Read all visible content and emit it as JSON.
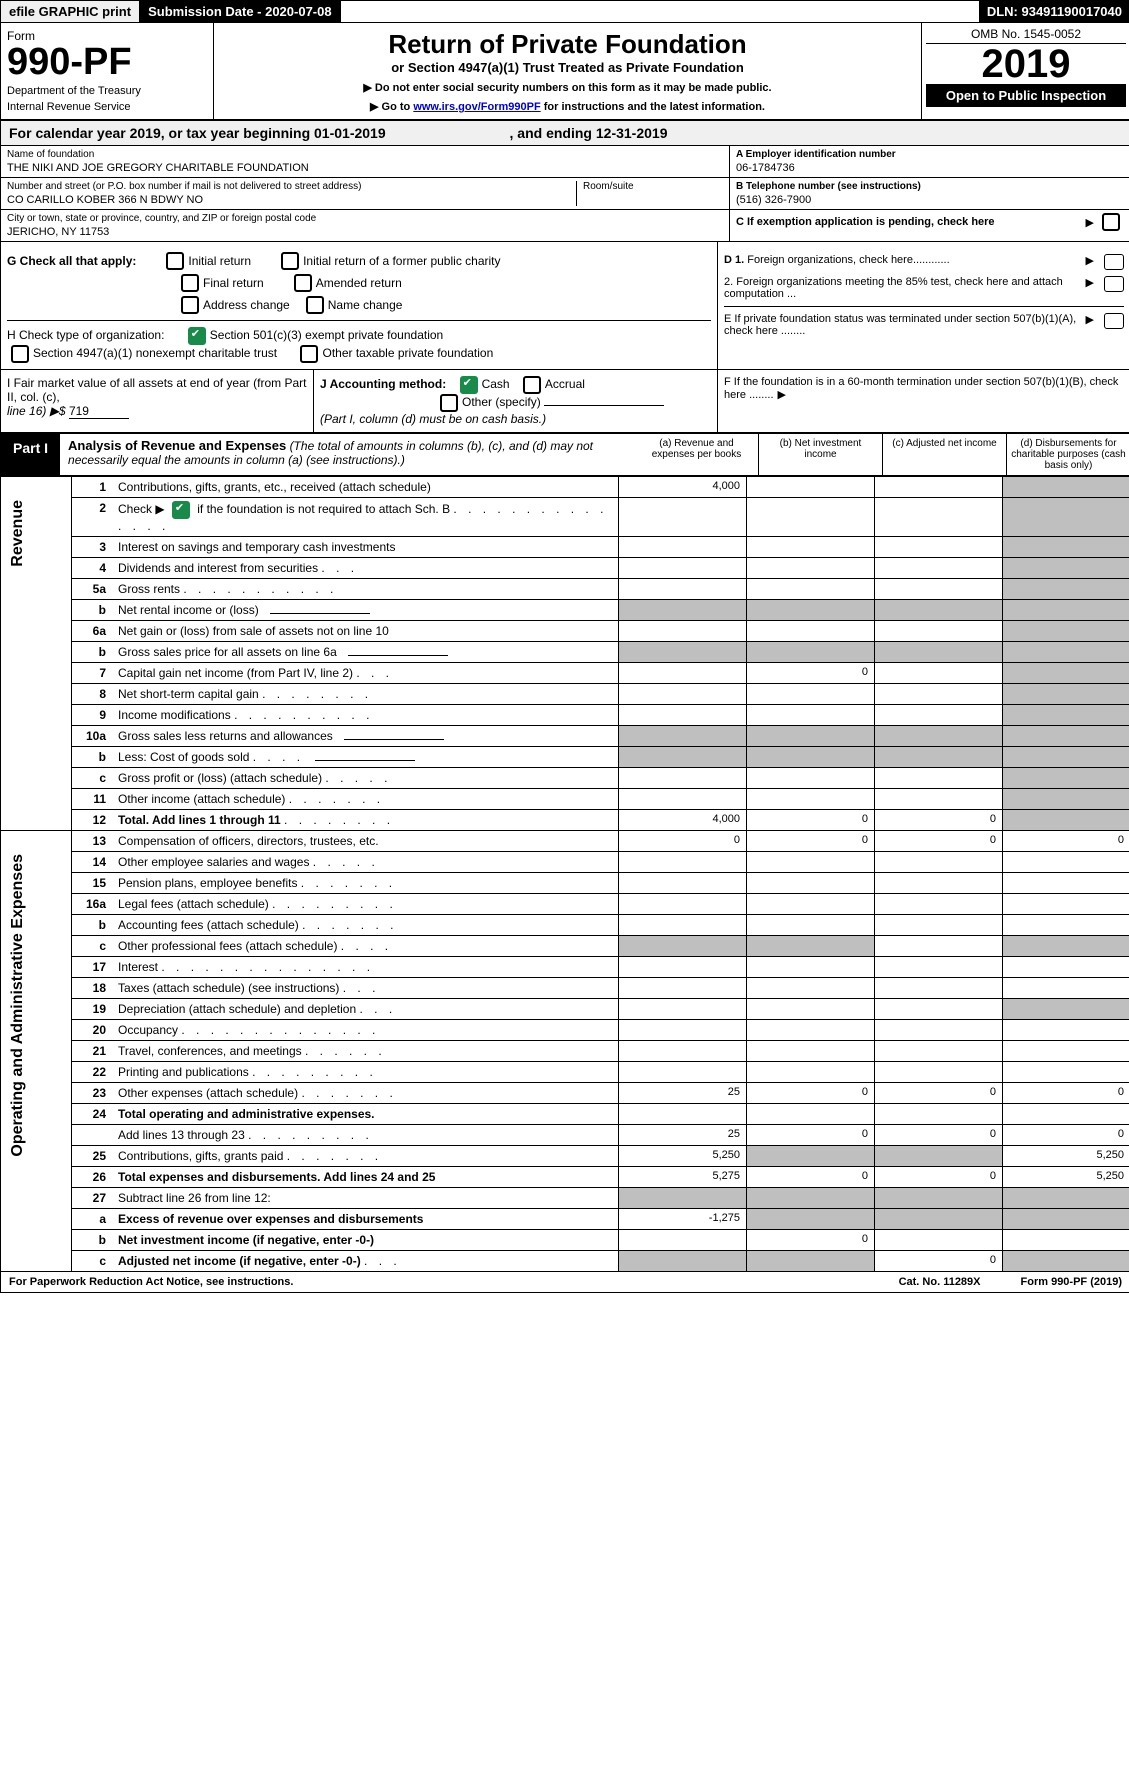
{
  "topbar": {
    "efile": "efile GRAPHIC print",
    "sub_label": "Submission Date - 2020-07-08",
    "dln": "DLN: 93491190017040"
  },
  "header": {
    "form": "Form",
    "num": "990-PF",
    "dept": "Department of the Treasury",
    "irs": "Internal Revenue Service",
    "title": "Return of Private Foundation",
    "subtitle": "or Section 4947(a)(1) Trust Treated as Private Foundation",
    "instr1": "▶ Do not enter social security numbers on this form as it may be made public.",
    "instr2": "▶ Go to ",
    "instr_link": "www.irs.gov/Form990PF",
    "instr3": " for instructions and the latest information.",
    "omb": "OMB No. 1545-0052",
    "year": "2019",
    "open": "Open to Public Inspection"
  },
  "calyear": {
    "pre": "For calendar year 2019, or tax year beginning ",
    "start": "01-01-2019",
    "mid": ", and ending ",
    "end": "12-31-2019"
  },
  "info": {
    "name_lbl": "Name of foundation",
    "name": "THE NIKI AND JOE GREGORY CHARITABLE FOUNDATION",
    "addr_lbl": "Number and street (or P.O. box number if mail is not delivered to street address)",
    "addr": "CO CARILLO KOBER 366 N BDWY NO",
    "room_lbl": "Room/suite",
    "room": "",
    "city_lbl": "City or town, state or province, country, and ZIP or foreign postal code",
    "city": "JERICHO, NY  11753",
    "ein_lbl": "A Employer identification number",
    "ein": "06-1784736",
    "tel_lbl": "B Telephone number (see instructions)",
    "tel": "(516) 326-7900",
    "c": "C If exemption application is pending, check here"
  },
  "g": {
    "label": "G Check all that apply:",
    "initial": "Initial return",
    "initial_former": "Initial return of a former public charity",
    "final": "Final return",
    "amended": "Amended return",
    "addr_change": "Address change",
    "name_change": "Name change"
  },
  "h": {
    "label": "H Check type of organization:",
    "sec501": "Section 501(c)(3) exempt private foundation",
    "sec4947": "Section 4947(a)(1) nonexempt charitable trust",
    "other": "Other taxable private foundation"
  },
  "d": {
    "d1": "D 1. Foreign organizations, check here............",
    "d2": "2. Foreign organizations meeting the 85% test, check here and attach computation ...",
    "e": "E If private foundation status was terminated under section 507(b)(1)(A), check here ........",
    "f": "F If the foundation is in a 60-month termination under section 507(b)(1)(B), check here ........"
  },
  "i": {
    "label": "I Fair market value of all assets at end of year (from Part II, col. (c),",
    "line": "line 16) ▶$",
    "val": "719"
  },
  "j": {
    "label": "J Accounting method:",
    "cash": "Cash",
    "accrual": "Accrual",
    "other": "Other (specify)",
    "note": "(Part I, column (d) must be on cash basis.)"
  },
  "part1": {
    "label": "Part I",
    "title": "Analysis of Revenue and Expenses",
    "note": "(The total of amounts in columns (b), (c), and (d) may not necessarily equal the amounts in column (a) (see instructions).)",
    "col_a": "(a)   Revenue and expenses per books",
    "col_b": "(b)  Net investment income",
    "col_c": "(c)  Adjusted net income",
    "col_d": "(d)  Disbursements for charitable purposes (cash basis only)"
  },
  "revenue_label": "Revenue",
  "expense_label": "Operating and Administrative Expenses",
  "rows": [
    {
      "n": "1",
      "d": "Contributions, gifts, grants, etc., received (attach schedule)",
      "a": "4,000"
    },
    {
      "n": "2",
      "d": "Check ▶",
      "d2": " if the foundation is not required to attach Sch. B",
      "check": true,
      "dots": ". . . . . . . . . . . . . . ."
    },
    {
      "n": "3",
      "d": "Interest on savings and temporary cash investments"
    },
    {
      "n": "4",
      "d": "Dividends and interest from securities",
      "dots": ". . ."
    },
    {
      "n": "5a",
      "d": "Gross rents",
      "dots": ". . . . . . . . . . ."
    },
    {
      "n": "b",
      "d": "Net rental income or (loss)",
      "blank": true
    },
    {
      "n": "6a",
      "d": "Net gain or (loss) from sale of assets not on line 10"
    },
    {
      "n": "b",
      "d": "Gross sales price for all assets on line 6a",
      "blank": true
    },
    {
      "n": "7",
      "d": "Capital gain net income (from Part IV, line 2)",
      "dots": ". . .",
      "b": "0"
    },
    {
      "n": "8",
      "d": "Net short-term capital gain",
      "dots": ". . . . . . . ."
    },
    {
      "n": "9",
      "d": "Income modifications",
      "dots": ". . . . . . . . . ."
    },
    {
      "n": "10a",
      "d": "Gross sales less returns and allowances",
      "blank": true
    },
    {
      "n": "b",
      "d": "Less: Cost of goods sold",
      "dots": ". . . .",
      "blank": true
    },
    {
      "n": "c",
      "d": "Gross profit or (loss) (attach schedule)",
      "dots": ". . . . ."
    },
    {
      "n": "11",
      "d": "Other income (attach schedule)",
      "dots": ". . . . . . ."
    },
    {
      "n": "12",
      "d": "Total. Add lines 1 through 11",
      "dots": ". . . . . . . .",
      "bold": true,
      "a": "4,000",
      "b": "0",
      "c": "0"
    },
    {
      "n": "13",
      "d": "Compensation of officers, directors, trustees, etc.",
      "a": "0",
      "b": "0",
      "c": "0",
      "dd": "0",
      "sec": "exp"
    },
    {
      "n": "14",
      "d": "Other employee salaries and wages",
      "dots": ". . . . .",
      "sec": "exp"
    },
    {
      "n": "15",
      "d": "Pension plans, employee benefits",
      "dots": ". . . . . . .",
      "sec": "exp"
    },
    {
      "n": "16a",
      "d": "Legal fees (attach schedule)",
      "dots": ". . . . . . . . .",
      "sec": "exp"
    },
    {
      "n": "b",
      "d": "Accounting fees (attach schedule)",
      "dots": ". . . . . . .",
      "sec": "exp"
    },
    {
      "n": "c",
      "d": "Other professional fees (attach schedule)",
      "dots": ". . . .",
      "sec": "exp"
    },
    {
      "n": "17",
      "d": "Interest",
      "dots": ". . . . . . . . . . . . . . .",
      "sec": "exp"
    },
    {
      "n": "18",
      "d": "Taxes (attach schedule) (see instructions)",
      "dots": ". . .",
      "sec": "exp"
    },
    {
      "n": "19",
      "d": "Depreciation (attach schedule) and depletion",
      "dots": ". . .",
      "sec": "exp"
    },
    {
      "n": "20",
      "d": "Occupancy",
      "dots": ". . . . . . . . . . . . . .",
      "sec": "exp"
    },
    {
      "n": "21",
      "d": "Travel, conferences, and meetings",
      "dots": ". . . . . .",
      "sec": "exp"
    },
    {
      "n": "22",
      "d": "Printing and publications",
      "dots": ". . . . . . . . .",
      "sec": "exp"
    },
    {
      "n": "23",
      "d": "Other expenses (attach schedule)",
      "dots": ". . . . . . .",
      "sec": "exp",
      "a": "25",
      "b": "0",
      "c": "0",
      "dd": "0"
    },
    {
      "n": "24",
      "d": "Total operating and administrative expenses.",
      "bold": true,
      "sec": "exp"
    },
    {
      "n": "",
      "d": "Add lines 13 through 23",
      "dots": ". . . . . . . . .",
      "sec": "exp",
      "a": "25",
      "b": "0",
      "c": "0",
      "dd": "0"
    },
    {
      "n": "25",
      "d": "Contributions, gifts, grants paid",
      "dots": ". . . . . . .",
      "sec": "exp",
      "a": "5,250",
      "dd": "5,250"
    },
    {
      "n": "26",
      "d": "Total expenses and disbursements. Add lines 24 and 25",
      "bold": true,
      "sec": "exp",
      "a": "5,275",
      "b": "0",
      "c": "0",
      "dd": "5,250"
    },
    {
      "n": "27",
      "d": "Subtract line 26 from line 12:",
      "sec": "exp"
    },
    {
      "n": "a",
      "d": "Excess of revenue over expenses and disbursements",
      "bold": true,
      "sec": "exp",
      "a": "-1,275"
    },
    {
      "n": "b",
      "d": "Net investment income (if negative, enter -0-)",
      "bold": true,
      "sec": "exp",
      "b": "0"
    },
    {
      "n": "c",
      "d": "Adjusted net income (if negative, enter -0-)",
      "dots": ". . .",
      "bold": true,
      "sec": "exp",
      "c": "0"
    }
  ],
  "footer": {
    "left": "For Paperwork Reduction Act Notice, see instructions.",
    "cat": "Cat. No. 11289X",
    "form": "Form 990-PF (2019)"
  }
}
